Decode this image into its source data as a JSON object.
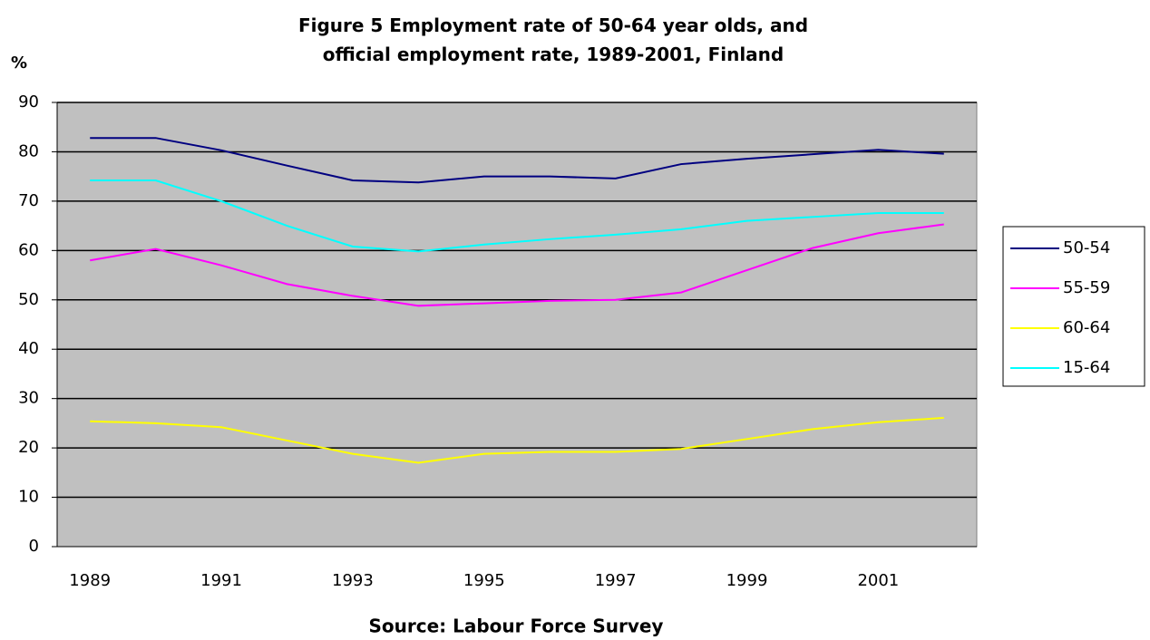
{
  "chart_data": {
    "type": "line",
    "title": "Figure 5  Employment rate of 50-64 year olds, and official employment rate, 1989-2001, Finland",
    "y_label": "%",
    "source": "Source: Labour Force Survey",
    "categories": [
      "1989",
      null,
      "1991",
      null,
      "1993",
      null,
      "1995",
      null,
      "1997",
      null,
      "1999",
      null,
      "2001",
      null
    ],
    "series": [
      {
        "name": "50-54",
        "color": "#000080",
        "values": [
          82.8,
          82.8,
          80.3,
          77.2,
          74.2,
          73.8,
          75,
          75,
          74.6,
          77.5,
          78.6,
          79.5,
          80.4,
          79.6
        ]
      },
      {
        "name": "55-59",
        "color": "#ff00ff",
        "values": [
          58,
          60.3,
          57,
          53.2,
          50.8,
          48.8,
          49.3,
          49.8,
          50,
          51.5,
          56,
          60.5,
          63.5,
          65.3
        ]
      },
      {
        "name": "60-64",
        "color": "#ffff00",
        "values": [
          25.4,
          25,
          24.2,
          21.5,
          18.8,
          17,
          18.8,
          19.2,
          19.2,
          19.8,
          21.8,
          23.8,
          25.2,
          26.1
        ]
      },
      {
        "name": "15-64",
        "color": "#00ffff",
        "values": [
          74.2,
          74.2,
          70,
          65,
          60.8,
          59.8,
          61.2,
          62.3,
          63.2,
          64.3,
          66,
          66.8,
          67.6,
          67.6
        ]
      }
    ],
    "ylim": [
      0,
      90
    ],
    "yticks": [
      0,
      10,
      20,
      30,
      40,
      50,
      60,
      70,
      80,
      90
    ],
    "grid": true,
    "plot_background": "#c0c0c0",
    "legend": "right"
  }
}
